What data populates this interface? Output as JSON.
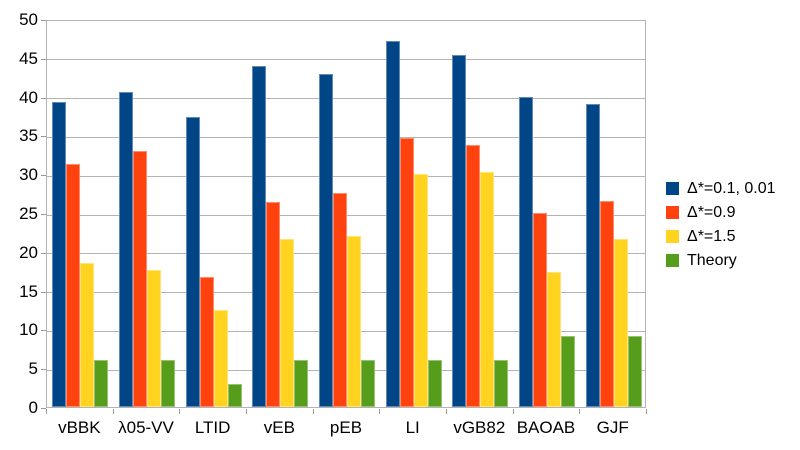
{
  "chart_data": {
    "type": "bar",
    "title": "",
    "xlabel": "",
    "ylabel": "",
    "categories": [
      "vBBK",
      "λ05-VV",
      "LTID",
      "vEB",
      "pEB",
      "LI",
      "vGB82",
      "BAOAB",
      "GJF"
    ],
    "series": [
      {
        "name": "Δ*=0.1, 0.01",
        "color": "#004586",
        "values": [
          39.3,
          40.6,
          37.4,
          44.0,
          42.9,
          47.2,
          45.4,
          39.9,
          39.0
        ]
      },
      {
        "name": "Δ*=0.9",
        "color": "#FF420E",
        "values": [
          31.3,
          33.0,
          16.7,
          26.4,
          27.6,
          34.7,
          33.8,
          25.0,
          26.5
        ]
      },
      {
        "name": "Δ*=1.5",
        "color": "#FFD320",
        "values": [
          18.5,
          17.6,
          12.5,
          21.6,
          22.1,
          30.0,
          30.3,
          17.4,
          21.6
        ]
      },
      {
        "name": "Theory",
        "color": "#579D1C",
        "values": [
          6.1,
          6.1,
          3.0,
          6.1,
          6.1,
          6.1,
          6.1,
          9.1,
          9.1
        ]
      }
    ],
    "ylim": [
      0,
      50
    ],
    "yticks": [
      0,
      5,
      10,
      15,
      20,
      25,
      30,
      35,
      40,
      45,
      50
    ],
    "grid": "horizontal",
    "grid_color": "#b3b3b3",
    "legend_position": "right",
    "background": "#ffffff",
    "text_color": "#000000"
  }
}
